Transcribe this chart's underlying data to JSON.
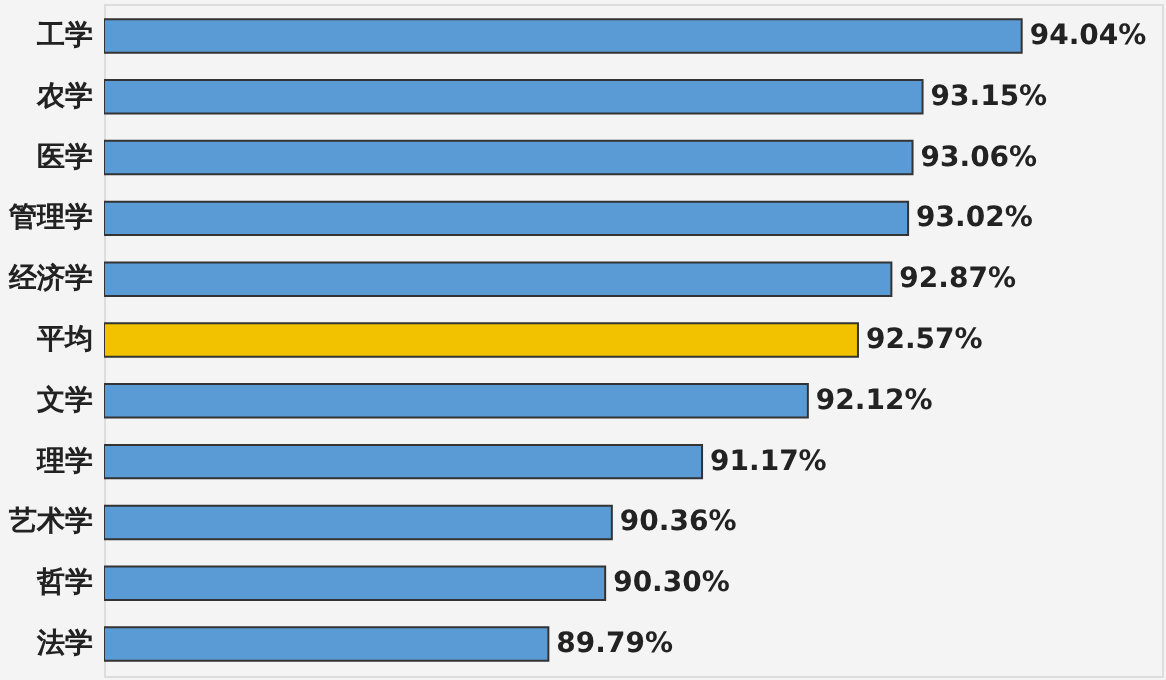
{
  "chart_data": {
    "type": "bar",
    "orientation": "horizontal",
    "categories": [
      "工学",
      "农学",
      "医学",
      "管理学",
      "经济学",
      "平均",
      "文学",
      "理学",
      "艺术学",
      "哲学",
      "法学"
    ],
    "values": [
      94.04,
      93.15,
      93.06,
      93.02,
      92.87,
      92.57,
      92.12,
      91.17,
      90.36,
      90.3,
      89.79
    ],
    "colors": [
      "#5b9bd5",
      "#5b9bd5",
      "#5b9bd5",
      "#5b9bd5",
      "#5b9bd5",
      "#f2c200",
      "#5b9bd5",
      "#5b9bd5",
      "#5b9bd5",
      "#5b9bd5",
      "#5b9bd5"
    ],
    "value_labels": [
      "94.04%",
      "93.15%",
      "93.06%",
      "93.02%",
      "92.87%",
      "92.57%",
      "92.12%",
      "91.17%",
      "90.36%",
      "90.30%",
      "89.79%"
    ],
    "xlim": [
      85.8,
      95.3
    ],
    "tick_labels": "y",
    "grid": false
  }
}
